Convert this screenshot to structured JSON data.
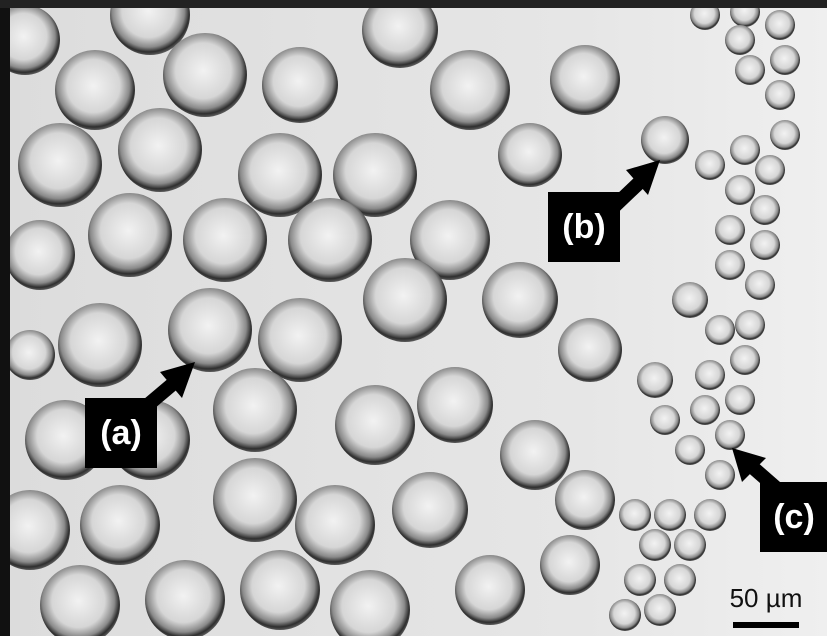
{
  "annotations": [
    "(a)",
    "(b)",
    "(c)"
  ],
  "scale_bar": {
    "label": "50 µm"
  }
}
